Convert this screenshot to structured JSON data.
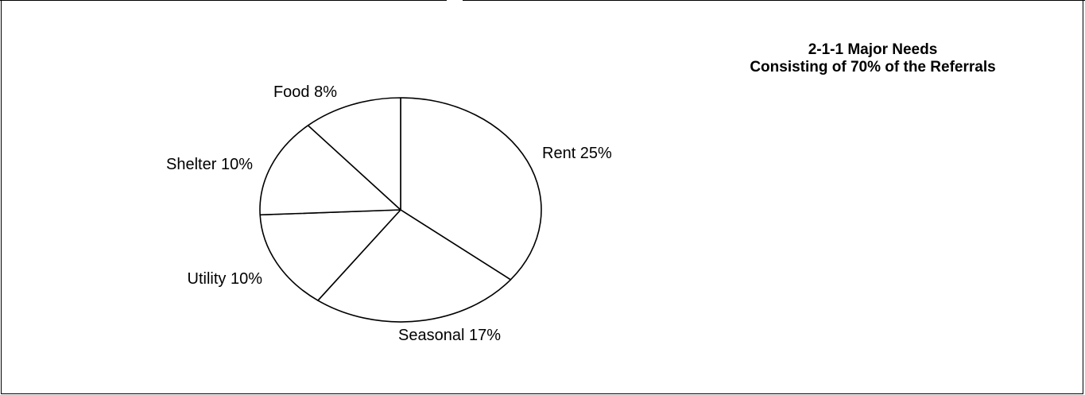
{
  "chart_data": {
    "type": "pie",
    "title_lines": [
      "2-1-1 Major Needs",
      "Consisting of 70% of the Referrals"
    ],
    "slices": [
      {
        "label": "Rent 25%",
        "category": "Rent",
        "value": 25
      },
      {
        "label": "Seasonal 17%",
        "category": "Seasonal",
        "value": 17
      },
      {
        "label": "Utility 10%",
        "category": "Utility",
        "value": 10
      },
      {
        "label": "Shelter 10%",
        "category": "Shelter",
        "value": 10
      },
      {
        "label": "Food 8%",
        "category": "Food",
        "value": 8
      }
    ],
    "slice_fill": "#ffffff",
    "slice_stroke": "#000000",
    "start": "12 o'clock",
    "direction": "clockwise",
    "legend": "none"
  }
}
